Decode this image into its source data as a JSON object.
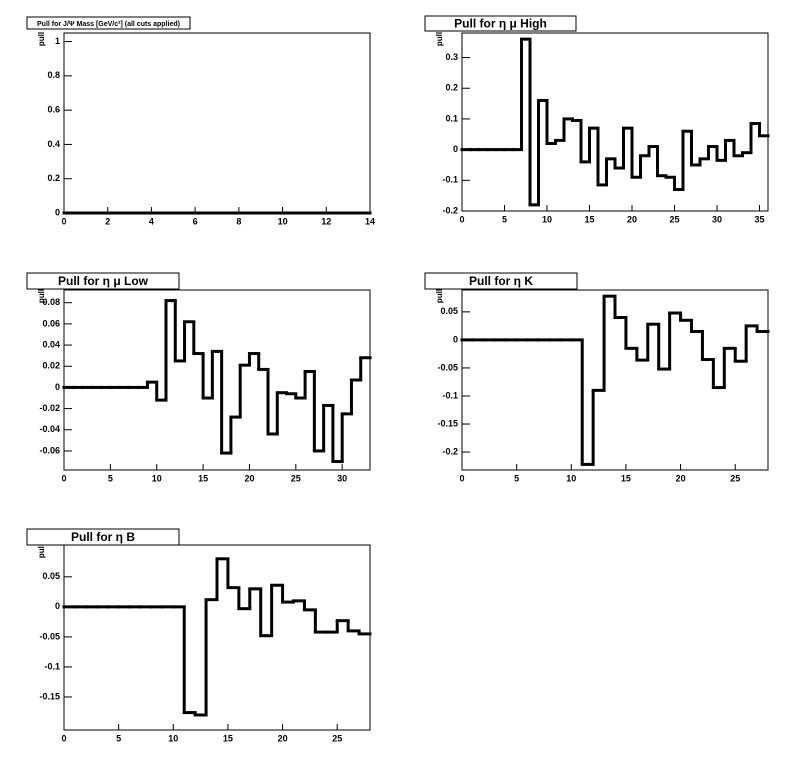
{
  "chart_data": [
    {
      "type": "histogram",
      "title": "Pull for J/Ψ Mass [GeV/c²] (all cuts applied)",
      "ylabel": "pull",
      "bins": [
        0,
        1,
        2,
        3,
        4,
        5,
        6,
        7,
        8,
        9,
        10,
        11,
        12,
        13,
        14
      ],
      "values": [
        0,
        0,
        0,
        0,
        0,
        0,
        0,
        0,
        0,
        0,
        0,
        0,
        0,
        0
      ],
      "xlim": [
        0,
        14
      ],
      "ylim": [
        0,
        1.05
      ],
      "xticks": [
        0,
        2,
        4,
        6,
        8,
        10,
        12,
        14
      ],
      "yticks": [
        0,
        0.2,
        0.4,
        0.6,
        0.8,
        1
      ]
    },
    {
      "type": "histogram",
      "title": "Pull for η μ High",
      "ylabel": "pull",
      "bins": [
        0,
        1,
        2,
        3,
        4,
        5,
        6,
        7,
        8,
        9,
        10,
        11,
        12,
        13,
        14,
        15,
        16,
        17,
        18,
        19,
        20,
        21,
        22,
        23,
        24,
        25,
        26,
        27,
        28,
        29,
        30,
        31,
        32,
        33,
        34,
        35,
        36
      ],
      "values": [
        0,
        0,
        0,
        0,
        0,
        0,
        0,
        0.36,
        -0.18,
        0.16,
        0.02,
        0.03,
        0.1,
        0.095,
        -0.04,
        0.07,
        -0.115,
        -0.03,
        -0.06,
        0.07,
        -0.09,
        -0.02,
        0.01,
        -0.085,
        -0.09,
        -0.13,
        0.06,
        -0.05,
        -0.03,
        0.01,
        -0.035,
        0.03,
        -0.02,
        -0.01,
        0.085,
        0.045
      ],
      "xlim": [
        0,
        36
      ],
      "ylim": [
        -0.2,
        0.38
      ],
      "xticks": [
        0,
        5,
        10,
        15,
        20,
        25,
        30,
        35
      ],
      "yticks": [
        -0.2,
        -0.1,
        0,
        0.1,
        0.2,
        0.3
      ]
    },
    {
      "type": "histogram",
      "title": "Pull for η μ Low",
      "ylabel": "pull",
      "bins": [
        0,
        1,
        2,
        3,
        4,
        5,
        6,
        7,
        8,
        9,
        10,
        11,
        12,
        13,
        14,
        15,
        16,
        17,
        18,
        19,
        20,
        21,
        22,
        23,
        24,
        25,
        26,
        27,
        28,
        29,
        30,
        31,
        32,
        33
      ],
      "values": [
        0,
        0,
        0,
        0,
        0,
        0,
        0,
        0,
        0,
        0.005,
        -0.012,
        0.082,
        0.025,
        0.062,
        0.032,
        -0.01,
        0.034,
        -0.062,
        -0.028,
        0.021,
        0.032,
        0.017,
        -0.044,
        -0.005,
        -0.006,
        -0.01,
        0.015,
        -0.06,
        -0.017,
        -0.07,
        -0.025,
        0.007,
        0.028
      ],
      "xlim": [
        0,
        33
      ],
      "ylim": [
        -0.078,
        0.092
      ],
      "xticks": [
        0,
        5,
        10,
        15,
        20,
        25,
        30
      ],
      "yticks": [
        -0.06,
        -0.04,
        -0.02,
        0,
        0.02,
        0.04,
        0.06,
        0.08
      ]
    },
    {
      "type": "histogram",
      "title": "Pull for η K",
      "ylabel": "pull",
      "bins": [
        0,
        1,
        2,
        3,
        4,
        5,
        6,
        7,
        8,
        9,
        10,
        11,
        12,
        13,
        14,
        15,
        16,
        17,
        18,
        19,
        20,
        21,
        22,
        23,
        24,
        25,
        26,
        27,
        28
      ],
      "values": [
        0,
        0,
        0,
        0,
        0,
        0,
        0,
        0,
        0,
        0,
        0,
        -0.222,
        -0.09,
        0.078,
        0.04,
        -0.015,
        -0.036,
        0.028,
        -0.052,
        0.048,
        0.035,
        0.015,
        -0.035,
        -0.085,
        -0.015,
        -0.038,
        0.025,
        0.015
      ],
      "xlim": [
        0,
        28
      ],
      "ylim": [
        -0.232,
        0.089
      ],
      "xticks": [
        0,
        5,
        10,
        15,
        20,
        25
      ],
      "yticks": [
        -0.2,
        -0.15,
        -0.1,
        -0.05,
        0,
        0.05
      ]
    },
    {
      "type": "histogram",
      "title": "Pull for η B",
      "ylabel": "pull",
      "bins": [
        0,
        1,
        2,
        3,
        4,
        5,
        6,
        7,
        8,
        9,
        10,
        11,
        12,
        13,
        14,
        15,
        16,
        17,
        18,
        19,
        20,
        21,
        22,
        23,
        24,
        25,
        26,
        27,
        28
      ],
      "values": [
        0,
        0,
        0,
        0,
        0,
        0,
        0,
        0,
        0,
        0,
        0,
        -0.176,
        -0.18,
        0.012,
        0.08,
        0.032,
        -0.003,
        0.03,
        -0.048,
        0.036,
        0.008,
        0.01,
        -0.005,
        -0.042,
        -0.042,
        -0.023,
        -0.04,
        -0.045
      ],
      "xlim": [
        0,
        28
      ],
      "ylim": [
        -0.205,
        0.103
      ],
      "xticks": [
        0,
        5,
        10,
        15,
        20,
        25
      ],
      "yticks": [
        -0.15,
        -0.1,
        -0.05,
        0,
        0.05
      ]
    }
  ]
}
